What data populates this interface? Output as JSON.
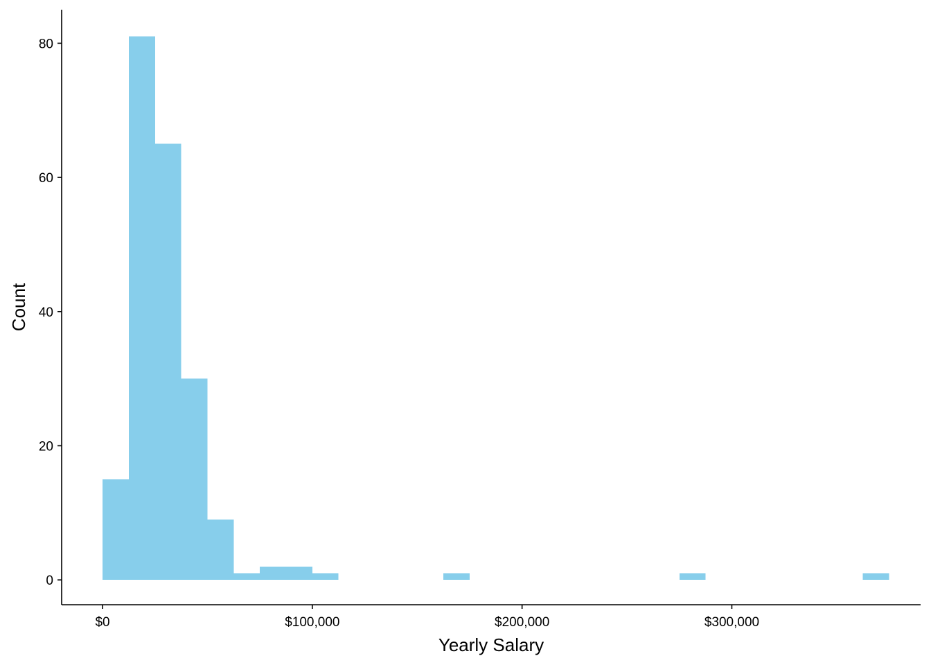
{
  "chart_data": {
    "type": "bar",
    "subtype": "histogram",
    "title": "",
    "xlabel": "Yearly Salary",
    "ylabel": "Count",
    "xlim": [
      -19500,
      390000
    ],
    "ylim": [
      -3.7,
      85
    ],
    "x_ticks": [
      {
        "value": 0,
        "label": "$0"
      },
      {
        "value": 100000,
        "label": "$100,000"
      },
      {
        "value": 200000,
        "label": "$200,000"
      },
      {
        "value": 300000,
        "label": "$300,000"
      }
    ],
    "y_ticks": [
      {
        "value": 0,
        "label": "0"
      },
      {
        "value": 20,
        "label": "20"
      },
      {
        "value": 40,
        "label": "40"
      },
      {
        "value": 60,
        "label": "60"
      },
      {
        "value": 80,
        "label": "80"
      }
    ],
    "bins": [
      {
        "start": 0,
        "end": 12500,
        "count": 15
      },
      {
        "start": 12500,
        "end": 25000,
        "count": 81
      },
      {
        "start": 25000,
        "end": 37500,
        "count": 65
      },
      {
        "start": 37500,
        "end": 50000,
        "count": 30
      },
      {
        "start": 50000,
        "end": 62500,
        "count": 9
      },
      {
        "start": 62500,
        "end": 75000,
        "count": 1
      },
      {
        "start": 75000,
        "end": 87500,
        "count": 2
      },
      {
        "start": 87500,
        "end": 100000,
        "count": 2
      },
      {
        "start": 100000,
        "end": 112500,
        "count": 1
      },
      {
        "start": 162500,
        "end": 175000,
        "count": 1
      },
      {
        "start": 275000,
        "end": 287500,
        "count": 1
      },
      {
        "start": 362500,
        "end": 375000,
        "count": 1
      }
    ],
    "bar_color": "#87CEEB",
    "grid": false,
    "legend": "none"
  }
}
